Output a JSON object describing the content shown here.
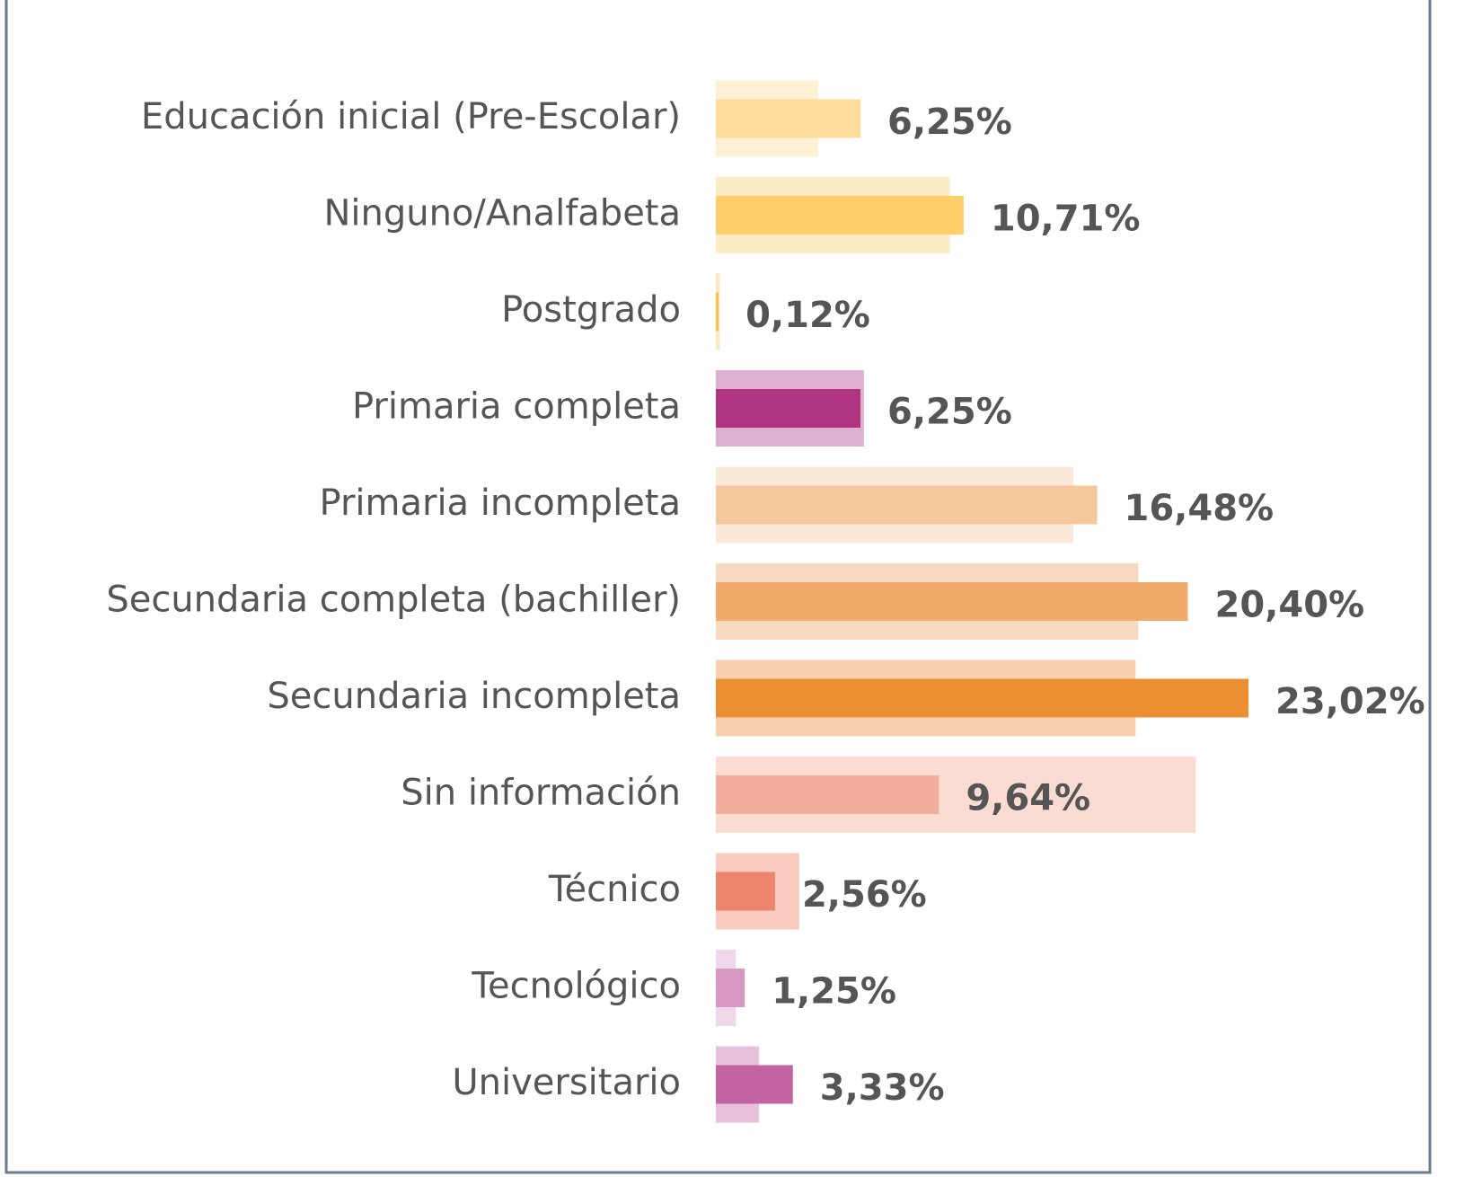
{
  "chart_data": {
    "type": "bar",
    "orientation": "horizontal",
    "categories": [
      "Educación inicial (Pre-Escolar)",
      "Ninguno/Analfabeta",
      "Postgrado",
      "Primaria completa",
      "Primaria incompleta",
      "Secundaria completa (bachiller)",
      "Secundaria incompleta",
      "Sin información",
      "Técnico",
      "Tecnológico",
      "Universitario"
    ],
    "series": [
      {
        "colors": [
          "#fdefd3",
          "#feecc7",
          "#fde9c0",
          "#e0b0d0",
          "#fae9d8",
          "#f7dabf",
          "#f8d0b0",
          "#fadcd3",
          "#f8cbbe",
          "#efd8e9",
          "#e8c0dc"
        ],
        "values": [
          4.42,
          10.12,
          0.17,
          6.4,
          15.45,
          18.26,
          18.14,
          20.74,
          3.6,
          0.87,
          1.86
        ]
      },
      {
        "colors": [
          "#fedd9a",
          "#fdcf6a",
          "#f9c04c",
          "#b03580",
          "#f6c79c",
          "#f0aa6a",
          "#ec8f33",
          "#f3ad9b",
          "#ed856c",
          "#d898c3",
          "#c463a3"
        ],
        "values": [
          6.25,
          10.71,
          0.12,
          6.25,
          16.48,
          20.4,
          23.02,
          9.64,
          2.56,
          1.25,
          3.33
        ],
        "value_labels": [
          "6,25%",
          "10,71%",
          "0,12%",
          "6,25%",
          "16,48%",
          "20,40%",
          "23,02%",
          "9,64%",
          "2,56%",
          "1,25%",
          "3,33%"
        ]
      }
    ]
  }
}
